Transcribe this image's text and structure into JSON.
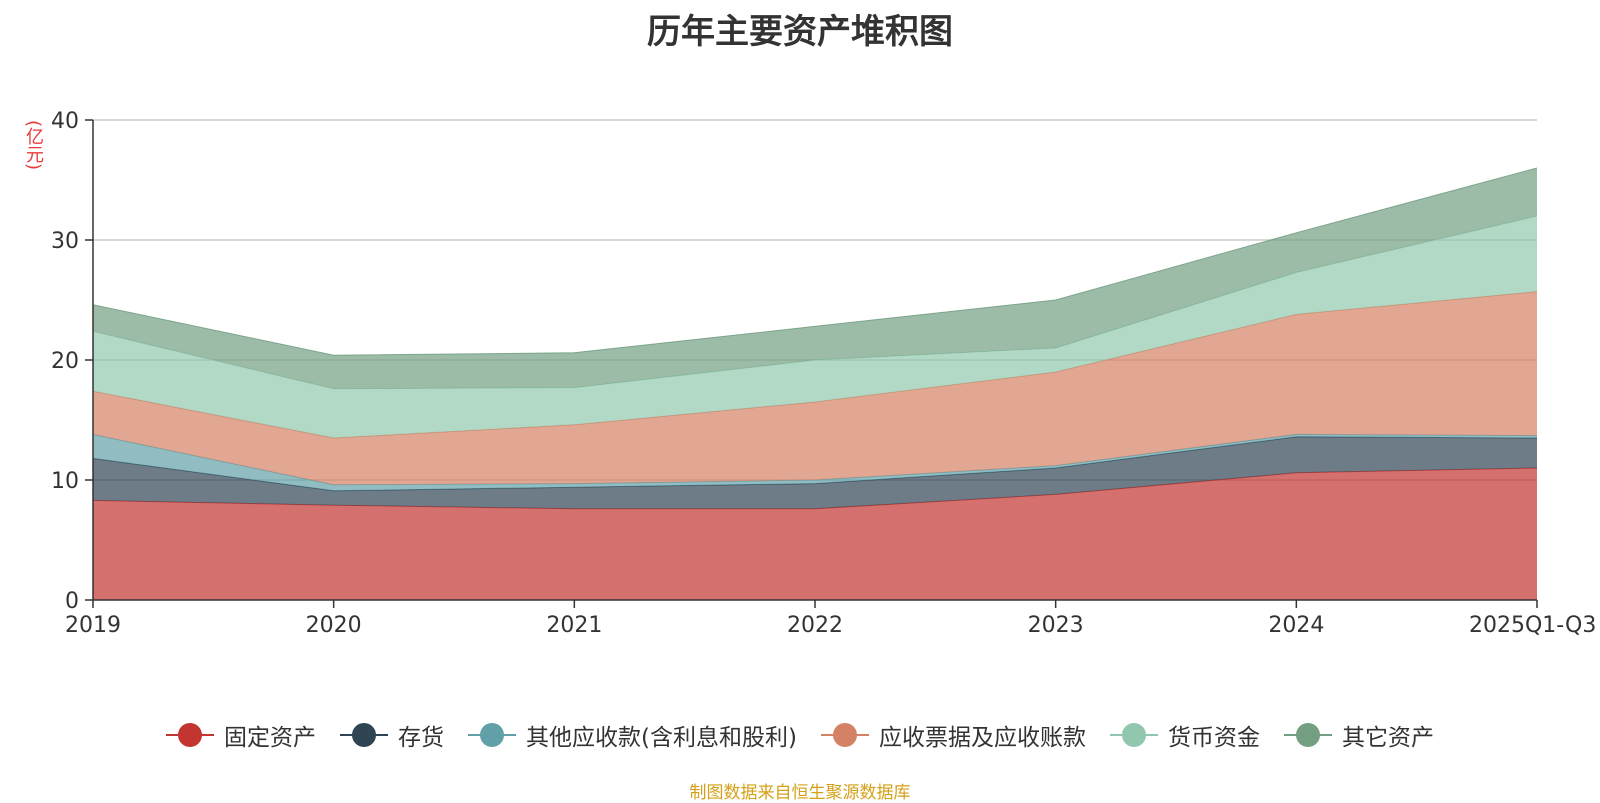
{
  "chart_data": {
    "type": "area",
    "stacked": true,
    "title": "历年主要资产堆积图",
    "ylabel": "(亿元)",
    "ylim": [
      0,
      40
    ],
    "yticks": [
      0,
      10,
      20,
      30,
      40
    ],
    "categories": [
      "2019",
      "2020",
      "2021",
      "2022",
      "2023",
      "2024",
      "2025Q1-Q3"
    ],
    "series": [
      {
        "name": "固定资产",
        "color": "#c23531",
        "values": [
          8.3,
          7.9,
          7.6,
          7.6,
          8.8,
          10.6,
          11.0
        ]
      },
      {
        "name": "存货",
        "color": "#2f4554",
        "values": [
          3.5,
          1.2,
          1.8,
          2.1,
          2.2,
          3.0,
          2.5
        ]
      },
      {
        "name": "其他应收款(含利息和股利)",
        "color": "#61a0a8",
        "values": [
          2.0,
          0.5,
          0.3,
          0.3,
          0.2,
          0.2,
          0.2
        ]
      },
      {
        "name": "应收票据及应收账款",
        "color": "#d48265",
        "values": [
          3.6,
          3.9,
          4.9,
          6.5,
          7.8,
          10.0,
          12.0
        ]
      },
      {
        "name": "货币资金",
        "color": "#91c7ae",
        "values": [
          5.0,
          4.1,
          3.1,
          3.5,
          2.0,
          3.5,
          6.3
        ]
      },
      {
        "name": "其它资产",
        "color": "#749f83",
        "values": [
          2.2,
          2.8,
          2.9,
          2.8,
          4.0,
          3.3,
          4.0
        ]
      }
    ]
  },
  "source": "制图数据来自恒生聚源数据库"
}
